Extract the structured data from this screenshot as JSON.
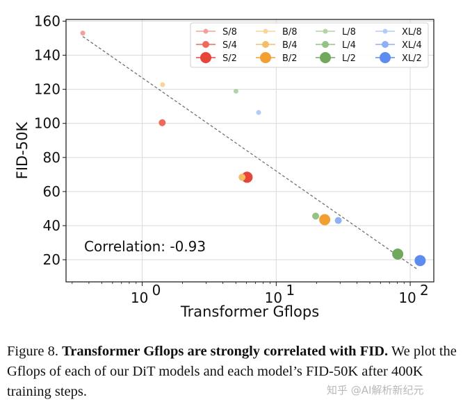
{
  "chart_data": {
    "type": "scatter",
    "xlabel": "Transformer Gflops",
    "ylabel": "FID-50K",
    "xscale": "log",
    "xlim": [
      0.27,
      150
    ],
    "ylim": [
      7,
      161
    ],
    "x_ticks": [
      1,
      10,
      100
    ],
    "x_tick_labels": [
      "10",
      "10",
      "10"
    ],
    "x_tick_exponents": [
      "0",
      "1",
      "2"
    ],
    "y_ticks": [
      20,
      40,
      60,
      80,
      100,
      120,
      140,
      160
    ],
    "grid": true,
    "legend_position": "top-right",
    "annotation": "Correlation: -0.93",
    "trend_line": {
      "x": [
        0.36,
        115
      ],
      "y": [
        151,
        14
      ]
    },
    "series": [
      {
        "name": "S/8",
        "color": "#f4a09a",
        "size": "small",
        "x": [
          0.36
        ],
        "y": [
          153.0
        ]
      },
      {
        "name": "S/4",
        "color": "#ee6a5d",
        "size": "medium",
        "x": [
          1.41
        ],
        "y": [
          100.4
        ]
      },
      {
        "name": "S/2",
        "color": "#e64538",
        "size": "large",
        "x": [
          6.06
        ],
        "y": [
          68.4
        ]
      },
      {
        "name": "B/8",
        "color": "#f7d59b",
        "size": "small",
        "x": [
          1.42
        ],
        "y": [
          122.7
        ]
      },
      {
        "name": "B/4",
        "color": "#f4bd68",
        "size": "medium",
        "x": [
          5.56
        ],
        "y": [
          68.4
        ]
      },
      {
        "name": "B/2",
        "color": "#f29f32",
        "size": "large",
        "x": [
          23.01
        ],
        "y": [
          43.5
        ]
      },
      {
        "name": "L/8",
        "color": "#b4d3a4",
        "size": "small",
        "x": [
          5.01
        ],
        "y": [
          118.9
        ]
      },
      {
        "name": "L/4",
        "color": "#95c285",
        "size": "medium",
        "x": [
          19.7
        ],
        "y": [
          45.6
        ]
      },
      {
        "name": "L/2",
        "color": "#70a95d",
        "size": "large",
        "x": [
          80.71
        ],
        "y": [
          23.3
        ]
      },
      {
        "name": "XL/8",
        "color": "#b3cbf6",
        "size": "small",
        "x": [
          7.39
        ],
        "y": [
          106.4
        ]
      },
      {
        "name": "XL/4",
        "color": "#8eb0f4",
        "size": "medium",
        "x": [
          29.05
        ],
        "y": [
          43.0
        ]
      },
      {
        "name": "XL/2",
        "color": "#5d8cf0",
        "size": "large",
        "x": [
          118.64
        ],
        "y": [
          19.5
        ]
      }
    ]
  },
  "caption": {
    "label": "Figure 8.",
    "bold_text": "Transformer Gflops are strongly correlated with FID.",
    "body": "We plot the Gflops of each of our DiT models and each model’s FID-50K after 400K training steps."
  },
  "watermark": "知乎 @AI解析新纪元"
}
